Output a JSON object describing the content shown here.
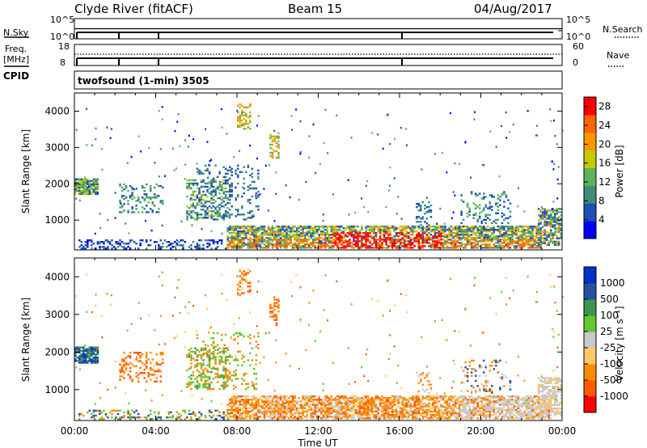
{
  "header": {
    "station": "Clyde River (fitACF)",
    "beam": "Beam 15",
    "date": "04/Aug/2017"
  },
  "top_panels": {
    "nsky_label": "N.Sky",
    "nsky_scale": [
      "10^5",
      "10^0"
    ],
    "nsearch_label": "N.Search",
    "nsearch_scale": [
      "10^5",
      "10^0"
    ],
    "freq_label": "Freq.",
    "freq_unit": "[MHz]",
    "freq_scale": [
      "18",
      "8"
    ],
    "nave_label": "Nave",
    "nave_scale": [
      "60",
      "0"
    ],
    "cpid_label": "CPID",
    "cpid_text": "twofsound (1-min) 3505"
  },
  "colors": {
    "power": [
      "#0000ff",
      "#1e50b4",
      "#3c8c78",
      "#5ab45a",
      "#c8c800",
      "#ff9600",
      "#ff6400",
      "#ff0000"
    ],
    "velocity": [
      "#ff0000",
      "#ff5a00",
      "#ff8c00",
      "#ffc864",
      "#c8c8c8",
      "#64c832",
      "#3c9650",
      "#2850a0",
      "#0032c8"
    ]
  },
  "chart_data": [
    {
      "type": "heatmap",
      "name": "power",
      "ylabel": "Slant Range [km]",
      "y_ticks": [
        "1000",
        "2000",
        "3000",
        "4000"
      ],
      "x_ticks": [
        "00:00",
        "04:00",
        "08:00",
        "12:00",
        "16:00",
        "20:00",
        "00:00"
      ],
      "xlim_hours": [
        0,
        24
      ],
      "ylim_km": [
        180,
        4500
      ],
      "colorbar": {
        "label": "Power [dB]",
        "ticks": [
          "4",
          "8",
          "12",
          "16",
          "20",
          "24",
          "28"
        ],
        "range": [
          0,
          30
        ]
      }
    },
    {
      "type": "heatmap",
      "name": "velocity",
      "ylabel": "Slant Range [km]",
      "xlabel": "Time UT",
      "y_ticks": [
        "1000",
        "2000",
        "3000",
        "4000"
      ],
      "x_ticks": [
        "00:00",
        "04:00",
        "08:00",
        "12:00",
        "16:00",
        "20:00",
        "00:00"
      ],
      "xlim_hours": [
        0,
        24
      ],
      "ylim_km": [
        180,
        4500
      ],
      "colorbar": {
        "label": "Velocity [m s⁻¹]",
        "ticks": [
          "1000",
          "500",
          "100",
          "25",
          "-25",
          "-100",
          "-500",
          "-1000"
        ]
      }
    }
  ]
}
